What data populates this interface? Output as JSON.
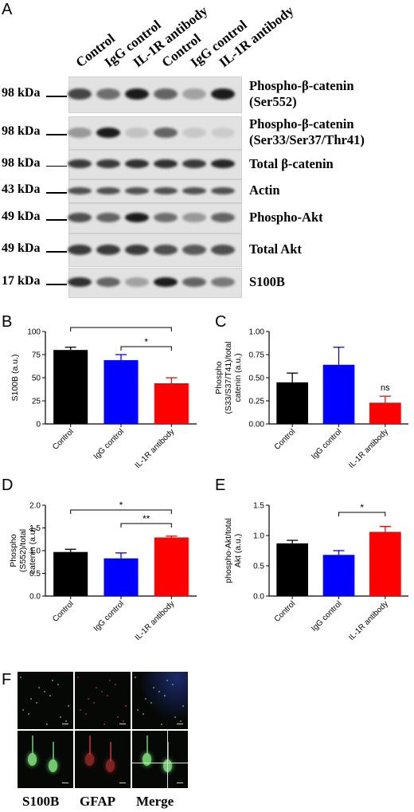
{
  "panel_letters": {
    "a": "A",
    "b": "B",
    "c": "C",
    "d": "D",
    "e": "E",
    "f": "F"
  },
  "panel_a": {
    "lanes": [
      "Control",
      "IgG control",
      "IL-1R antibody",
      "Control",
      "IgG control",
      "IL-1R antibody"
    ],
    "blots": [
      {
        "mw": "98 kDa",
        "label1": "Phospho-β-catenin",
        "label2": "(Ser552)",
        "intensities": [
          0.75,
          0.55,
          0.95,
          0.6,
          0.3,
          0.95
        ]
      },
      {
        "mw": "98 kDa",
        "label1": "Phospho-β-catenin",
        "label2": "(Ser33/Ser37/Thr41)",
        "intensities": [
          0.35,
          0.95,
          0.15,
          0.6,
          0.12,
          0.1
        ]
      },
      {
        "mw": "98 kDa",
        "label1": "Total β-catenin",
        "label2": "",
        "intensities": [
          0.8,
          0.8,
          0.85,
          0.85,
          0.8,
          0.9
        ]
      },
      {
        "mw": "43 kDa",
        "label1": "Actin",
        "label2": "",
        "intensities": [
          0.7,
          0.7,
          0.7,
          0.7,
          0.7,
          0.7
        ]
      },
      {
        "mw": "49 kDa",
        "label1": "Phospho-Akt",
        "label2": "",
        "intensities": [
          0.7,
          0.6,
          0.95,
          0.55,
          0.35,
          0.6
        ]
      },
      {
        "mw": "49 kDa",
        "label1": "Total Akt",
        "label2": "",
        "intensities": [
          0.8,
          0.8,
          0.8,
          0.7,
          0.65,
          0.7
        ]
      },
      {
        "mw": "17 kDa",
        "label1": "S100B",
        "label2": "",
        "intensities": [
          0.85,
          0.6,
          0.3,
          0.95,
          0.6,
          0.5
        ]
      }
    ]
  },
  "chart_data": [
    {
      "panel": "B",
      "type": "bar",
      "categories": [
        "Control",
        "IgG control",
        "IL-1R antibody"
      ],
      "values": [
        80,
        69,
        44
      ],
      "errors": [
        3,
        6,
        6
      ],
      "colors": [
        "#000000",
        "#0000ff",
        "#ff0000"
      ],
      "ylabel": "S100B (a.u.)",
      "ylim": [
        0,
        100
      ],
      "yticks": [
        "0",
        "25",
        "50",
        "75",
        "100"
      ],
      "significance": [
        {
          "from": 0,
          "to": 2,
          "label": "**"
        },
        {
          "from": 1,
          "to": 2,
          "label": "*"
        }
      ]
    },
    {
      "panel": "C",
      "type": "bar",
      "categories": [
        "Control",
        "IgG control",
        "IL-1R antibody"
      ],
      "values": [
        0.45,
        0.64,
        0.23
      ],
      "errors": [
        0.1,
        0.19,
        0.07
      ],
      "colors": [
        "#000000",
        "#0000ff",
        "#ff0000"
      ],
      "ylabel_lines": [
        "Phospho",
        "(S33/S37/T41)/total",
        "catenin (a.u.)"
      ],
      "ylim": [
        0,
        1.0
      ],
      "yticks": [
        "0.00",
        "0.25",
        "0.50",
        "0.75",
        "1.00"
      ],
      "annotation": {
        "bar": 2,
        "label": "ns"
      }
    },
    {
      "panel": "D",
      "type": "bar",
      "categories": [
        "Control",
        "IgG control",
        "IL-1R antibody"
      ],
      "values": [
        0.97,
        0.83,
        1.29
      ],
      "errors": [
        0.06,
        0.12,
        0.03
      ],
      "colors": [
        "#000000",
        "#0000ff",
        "#ff0000"
      ],
      "ylabel_lines": [
        "Phospho",
        "(S552)/total",
        "catenin (a.u)"
      ],
      "ylim": [
        0,
        2.0
      ],
      "yticks": [
        "0.0",
        "0.5",
        "1.0",
        "1.5",
        "2.0"
      ],
      "significance": [
        {
          "from": 0,
          "to": 2,
          "label": "*"
        },
        {
          "from": 1,
          "to": 2,
          "label": "**"
        }
      ]
    },
    {
      "panel": "E",
      "type": "bar",
      "categories": [
        "Control",
        "IgG control",
        "IL-1R antibody"
      ],
      "values": [
        0.87,
        0.68,
        1.06
      ],
      "errors": [
        0.05,
        0.07,
        0.09
      ],
      "colors": [
        "#000000",
        "#0000ff",
        "#ff0000"
      ],
      "ylabel_lines": [
        "phospho-Akt/total",
        "Akt (a.u.)"
      ],
      "ylim": [
        0,
        1.5
      ],
      "yticks": [
        "0.0",
        "0.5",
        "1.0",
        "1.5"
      ],
      "significance": [
        {
          "from": 1,
          "to": 2,
          "label": "*"
        }
      ]
    }
  ],
  "panel_f": {
    "labels": [
      "S100B",
      "GFAP",
      "Merge"
    ],
    "channel_colors": [
      "#7fe07a",
      "#e03a3a",
      "#7fe07a"
    ]
  }
}
